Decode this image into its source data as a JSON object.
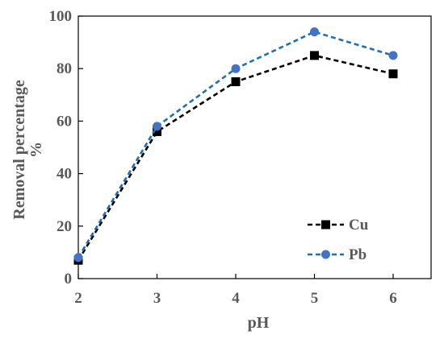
{
  "chart_data": {
    "type": "line",
    "title": "",
    "xlabel": "pH",
    "ylabel_line1": "Removal percentage",
    "ylabel_line2": "%",
    "x": [
      2,
      3,
      4,
      5,
      6
    ],
    "x_tick_labels": [
      "2",
      "3",
      "4",
      "5",
      "6"
    ],
    "xlim": [
      2,
      6
    ],
    "ylim": [
      0,
      100
    ],
    "y_ticks": [
      0,
      20,
      40,
      60,
      80,
      100
    ],
    "y_tick_labels": [
      "0",
      "20",
      "40",
      "60",
      "80",
      "100"
    ],
    "grid": false,
    "legend_position": "bottom-right",
    "series": [
      {
        "name": "Cu",
        "values": [
          7,
          56,
          75,
          85,
          78
        ],
        "color": "#000000",
        "marker": "square",
        "line_style": "dashed"
      },
      {
        "name": "Pb",
        "values": [
          8,
          58,
          80,
          94,
          85
        ],
        "color": "#4472C4",
        "marker": "circle",
        "line_style": "dashed",
        "line_color": "#1F6FB5"
      }
    ]
  }
}
